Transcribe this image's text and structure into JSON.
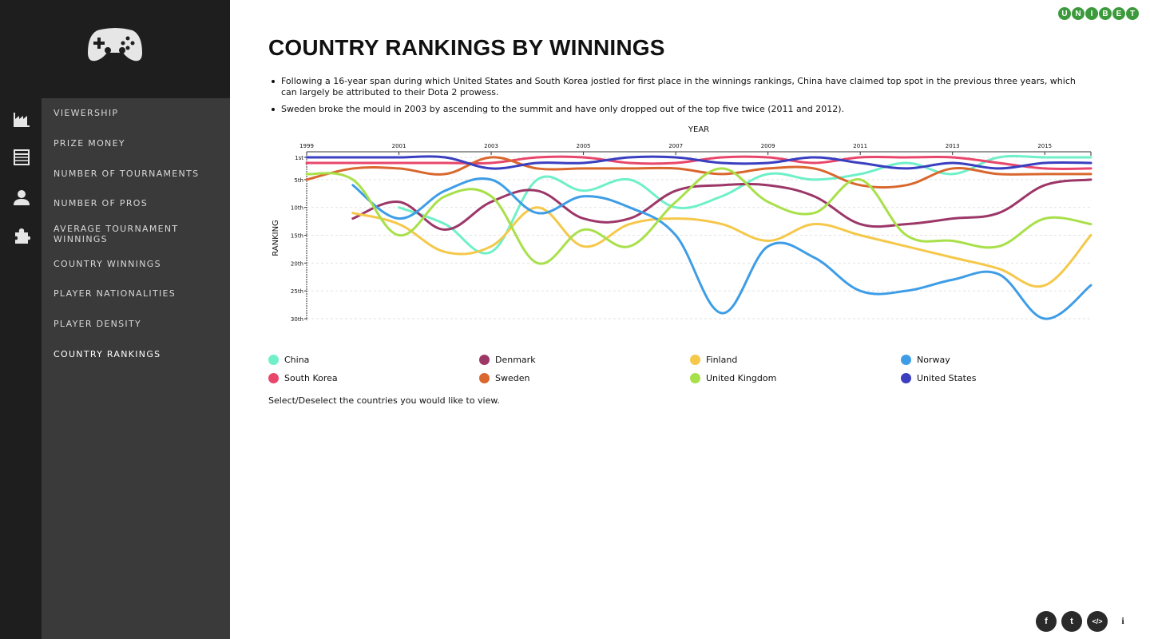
{
  "sidebar": {
    "logo_icon": "gamepad-icon",
    "rail_icons": [
      "factory-icon",
      "table-icon",
      "person-icon",
      "puzzle-icon"
    ],
    "items": [
      {
        "label": "VIEWERSHIP"
      },
      {
        "label": "PRIZE MONEY"
      },
      {
        "label": "NUMBER OF TOURNAMENTS"
      },
      {
        "label": "NUMBER OF PROS"
      },
      {
        "label": "AVERAGE TOURNAMENT WINNINGS"
      },
      {
        "label": "COUNTRY WINNINGS"
      },
      {
        "label": "PLAYER NATIONALITIES"
      },
      {
        "label": "PLAYER DENSITY"
      },
      {
        "label": "COUNTRY RANKINGS"
      }
    ],
    "active_index": 8
  },
  "brand": {
    "letters": [
      "U",
      "N",
      "I",
      "B",
      "E",
      "T"
    ],
    "color": "#3c9a3c"
  },
  "page": {
    "title": "COUNTRY RANKINGS BY WINNINGS",
    "bullets": [
      "Following a 16-year span during which United States and South Korea jostled for first place in the winnings rankings, China have claimed top spot in the previous three years, which can largely be attributed to their Dota 2 prowess.",
      "Sweden broke the mould in 2003 by ascending to the summit and have only dropped out of the top five twice (2011 and 2012)."
    ],
    "hint": "Select/Deselect the countries you would like to view."
  },
  "chart_data": {
    "type": "line",
    "xlabel": "YEAR",
    "ylabel": "RANKING",
    "x_ticks": [
      "1999",
      "2001",
      "2003",
      "2005",
      "2007",
      "2009",
      "2011",
      "2013",
      "2015"
    ],
    "y_ticks": [
      "1st",
      "5th",
      "10th",
      "15th",
      "20th",
      "25th",
      "30th"
    ],
    "y_tick_values": [
      1,
      5,
      10,
      15,
      20,
      25,
      30
    ],
    "xlim": [
      1999,
      2016
    ],
    "ylim": [
      1,
      30
    ],
    "y_inverted": true,
    "x_axis_position": "top",
    "grid": true,
    "legend_position": "bottom",
    "series": [
      {
        "name": "China",
        "color": "#6ff0c8",
        "x": [
          2001,
          2002,
          2003,
          2004,
          2005,
          2006,
          2007,
          2008,
          2009,
          2010,
          2011,
          2012,
          2013,
          2014,
          2015,
          2016
        ],
        "values": [
          10,
          13,
          18,
          5,
          7,
          5,
          10,
          8,
          4,
          5,
          4,
          2,
          4,
          1,
          1,
          1
        ]
      },
      {
        "name": "Denmark",
        "color": "#9c3768",
        "x": [
          2000,
          2001,
          2002,
          2003,
          2004,
          2005,
          2006,
          2007,
          2008,
          2009,
          2010,
          2011,
          2012,
          2013,
          2014,
          2015,
          2016
        ],
        "values": [
          12,
          9,
          14,
          9,
          7,
          12,
          12,
          7,
          6,
          6,
          8,
          13,
          13,
          12,
          11,
          6,
          5
        ]
      },
      {
        "name": "Finland",
        "color": "#f5c84a",
        "x": [
          2000,
          2001,
          2002,
          2003,
          2004,
          2005,
          2006,
          2007,
          2008,
          2009,
          2010,
          2011,
          2012,
          2013,
          2014,
          2015,
          2016
        ],
        "values": [
          11,
          13,
          18,
          17,
          10,
          17,
          13,
          12,
          13,
          16,
          13,
          15,
          17,
          19,
          21,
          24,
          15
        ]
      },
      {
        "name": "Norway",
        "color": "#3e9de6",
        "x": [
          2000,
          2001,
          2002,
          2003,
          2004,
          2005,
          2006,
          2007,
          2008,
          2009,
          2010,
          2011,
          2012,
          2013,
          2014,
          2015,
          2016
        ],
        "values": [
          6,
          12,
          7,
          5,
          11,
          8,
          10,
          15,
          29,
          17,
          19,
          25,
          25,
          23,
          22,
          30,
          24
        ]
      },
      {
        "name": "South Korea",
        "color": "#e8476b",
        "x": [
          1999,
          2000,
          2001,
          2002,
          2003,
          2004,
          2005,
          2006,
          2007,
          2008,
          2009,
          2010,
          2011,
          2012,
          2013,
          2014,
          2015,
          2016
        ],
        "values": [
          2,
          2,
          2,
          2,
          2,
          1,
          1,
          2,
          2,
          1,
          1,
          2,
          1,
          1,
          1,
          2,
          3,
          3
        ]
      },
      {
        "name": "Sweden",
        "color": "#d9672e",
        "x": [
          1999,
          2000,
          2001,
          2002,
          2003,
          2004,
          2005,
          2006,
          2007,
          2008,
          2009,
          2010,
          2011,
          2012,
          2013,
          2014,
          2015,
          2016
        ],
        "values": [
          5,
          3,
          3,
          4,
          1,
          3,
          3,
          3,
          3,
          4,
          3,
          3,
          6,
          6,
          3,
          4,
          4,
          4
        ]
      },
      {
        "name": "United Kingdom",
        "color": "#a8e04a",
        "x": [
          1999,
          2000,
          2001,
          2002,
          2003,
          2004,
          2005,
          2006,
          2007,
          2008,
          2009,
          2010,
          2011,
          2012,
          2013,
          2014,
          2015,
          2016
        ],
        "values": [
          4,
          5,
          15,
          8,
          8,
          20,
          14,
          17,
          9,
          3,
          9,
          11,
          5,
          15,
          16,
          17,
          12,
          13
        ]
      },
      {
        "name": "United States",
        "color": "#3a3fc0",
        "x": [
          1999,
          2000,
          2001,
          2002,
          2003,
          2004,
          2005,
          2006,
          2007,
          2008,
          2009,
          2010,
          2011,
          2012,
          2013,
          2014,
          2015,
          2016
        ],
        "values": [
          1,
          1,
          1,
          1,
          3,
          2,
          2,
          1,
          1,
          2,
          2,
          1,
          2,
          3,
          2,
          3,
          2,
          2
        ]
      }
    ]
  },
  "social": {
    "buttons": [
      "f",
      "t",
      "</>"
    ],
    "info": "i"
  }
}
